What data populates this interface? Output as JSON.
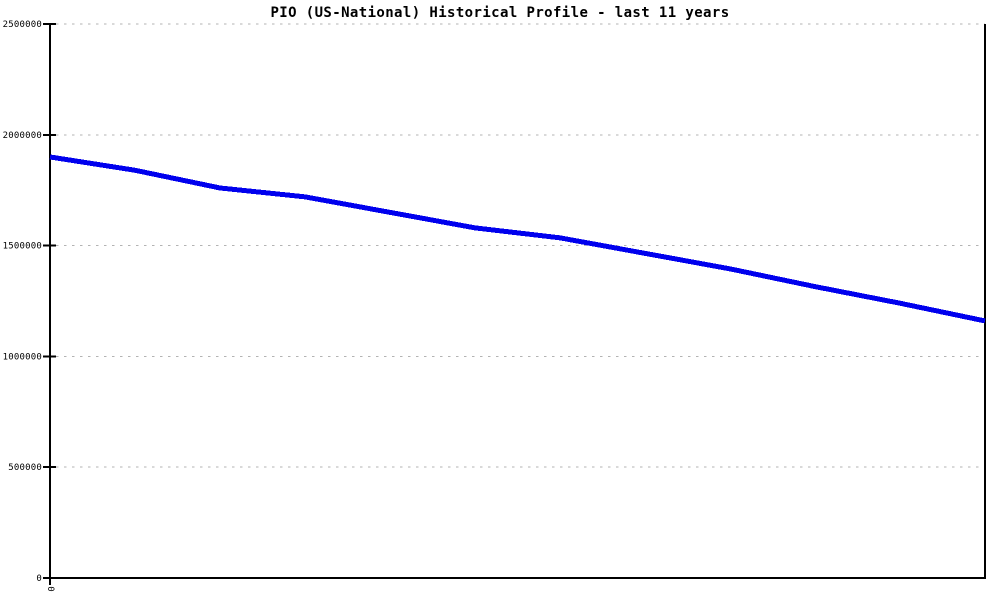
{
  "chart_data": {
    "type": "line",
    "title": "PIO (US-National) Historical Profile - last 11 years",
    "xlabel": "",
    "ylabel": "",
    "xlim": [
      0,
      11
    ],
    "ylim": [
      0,
      2500000
    ],
    "yticks": [
      0,
      500000,
      1000000,
      1500000,
      2000000,
      2500000
    ],
    "ytick_labels": [
      "0",
      "500000",
      "1000000",
      "1500000",
      "2000000",
      "2500000"
    ],
    "x_tick_label": "0",
    "x": [
      0,
      1,
      2,
      3,
      4,
      5,
      6,
      7,
      8,
      9,
      10,
      11
    ],
    "series": [
      {
        "name": "PIO (US-National)",
        "color": "#0000ee",
        "values": [
          1900000,
          1840000,
          1760000,
          1720000,
          1650000,
          1580000,
          1535000,
          1465000,
          1395000,
          1315000,
          1240000,
          1160000
        ]
      }
    ],
    "grid": "horizontal-dashed",
    "legend": "none",
    "colors": {
      "axis": "#000000",
      "grid": "#b3b3b3",
      "background": "#ffffff",
      "text": "#000000",
      "line": "#0000ee"
    }
  }
}
